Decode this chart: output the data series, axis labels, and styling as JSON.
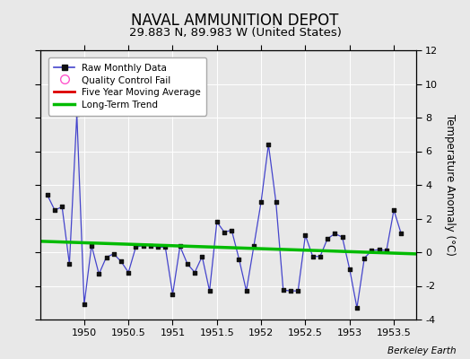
{
  "title": "NAVAL AMMUNITION DEPOT",
  "subtitle": "29.883 N, 89.983 W (United States)",
  "ylabel": "Temperature Anomaly (°C)",
  "credit": "Berkeley Earth",
  "xlim": [
    1949.5,
    1953.75
  ],
  "ylim": [
    -4,
    12
  ],
  "yticks": [
    -4,
    -2,
    0,
    2,
    4,
    6,
    8,
    10,
    12
  ],
  "xticks": [
    1950,
    1950.5,
    1951,
    1951.5,
    1952,
    1952.5,
    1953,
    1953.5
  ],
  "xtick_labels": [
    "1950",
    "1950.5",
    "1951",
    "1951.5",
    "1952",
    "1952.5",
    "1953",
    "1953.5"
  ],
  "background_color": "#e8e8e8",
  "plot_bg_color": "#e8e8e8",
  "raw_x": [
    1949.583,
    1949.667,
    1949.75,
    1949.833,
    1949.917,
    1950.0,
    1950.083,
    1950.167,
    1950.25,
    1950.333,
    1950.417,
    1950.5,
    1950.583,
    1950.667,
    1950.75,
    1950.833,
    1950.917,
    1951.0,
    1951.083,
    1951.167,
    1951.25,
    1951.333,
    1951.417,
    1951.5,
    1951.583,
    1951.667,
    1951.75,
    1951.833,
    1951.917,
    1952.0,
    1952.083,
    1952.167,
    1952.25,
    1952.333,
    1952.417,
    1952.5,
    1952.583,
    1952.667,
    1952.75,
    1952.833,
    1952.917,
    1953.0,
    1953.083,
    1953.167,
    1953.25,
    1953.333,
    1953.417,
    1953.5,
    1953.583
  ],
  "raw_y": [
    3.4,
    2.5,
    2.7,
    -0.7,
    8.2,
    -3.1,
    0.4,
    -1.3,
    -0.3,
    -0.1,
    -0.55,
    -1.2,
    0.3,
    0.4,
    0.4,
    0.3,
    0.3,
    -2.5,
    0.35,
    -0.7,
    -1.2,
    -0.25,
    -2.3,
    1.8,
    1.2,
    1.3,
    -0.4,
    -2.3,
    0.35,
    3.0,
    6.4,
    3.0,
    -2.25,
    -2.3,
    -2.3,
    1.0,
    -0.25,
    -0.25,
    0.8,
    1.1,
    0.9,
    -1.0,
    -3.3,
    -0.35,
    0.1,
    0.15,
    0.1,
    2.5,
    1.1
  ],
  "trend_x": [
    1949.5,
    1953.75
  ],
  "trend_y": [
    0.65,
    -0.1
  ],
  "line_color": "#4444cc",
  "dot_color": "#111111",
  "trend_color": "#00bb00",
  "mavg_color": "#dd0000",
  "title_fontsize": 12,
  "subtitle_fontsize": 9.5,
  "ylabel_fontsize": 8.5,
  "tick_fontsize": 8
}
